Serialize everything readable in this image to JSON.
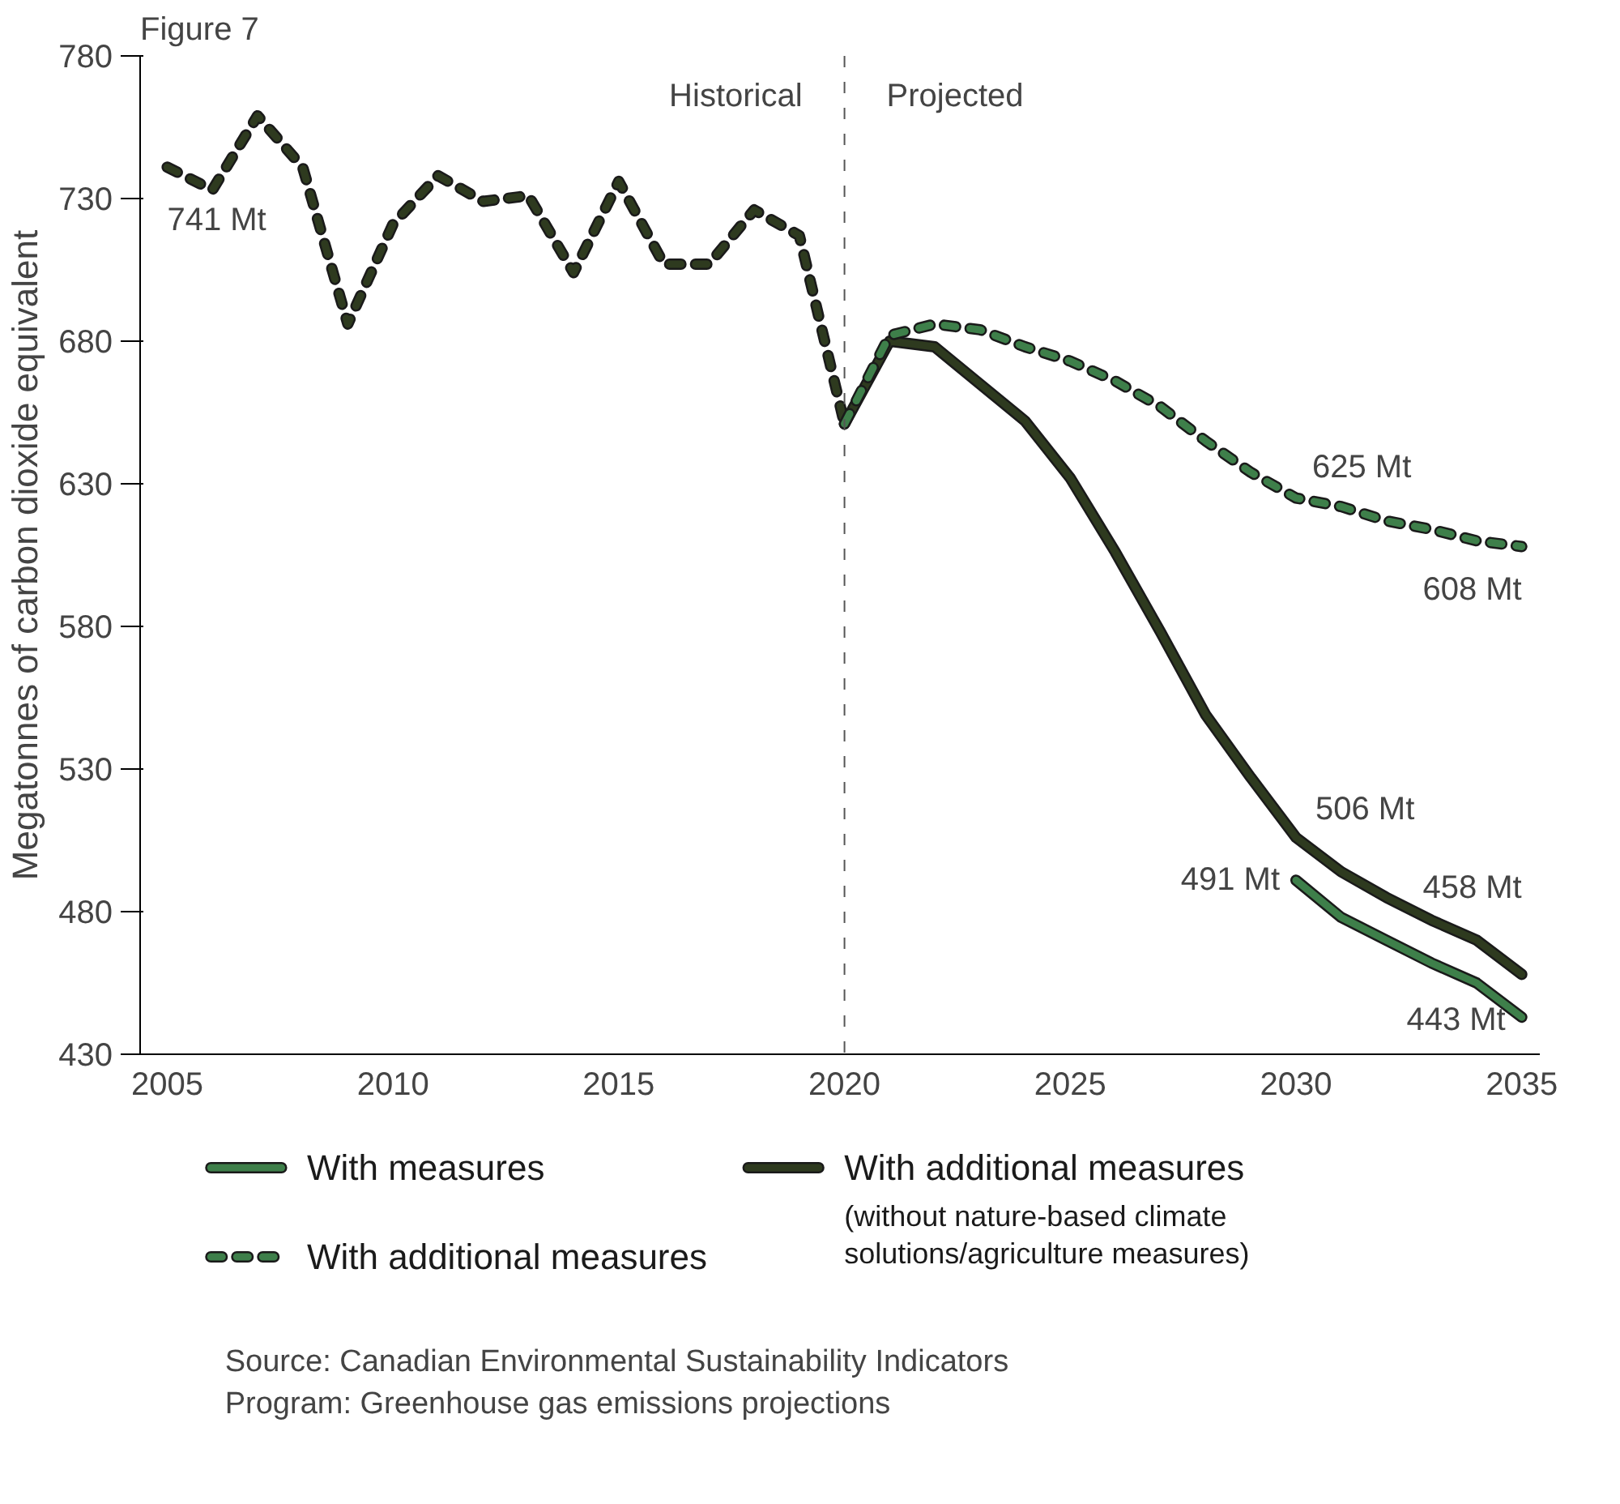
{
  "chart_data": {
    "type": "line",
    "title": "Figure 7",
    "ylabel": "Megatonnes of carbon dioxide equivalent",
    "xlim": [
      2004.4,
      2035.4
    ],
    "xticks": [
      2005,
      2010,
      2015,
      2020,
      2025,
      2030,
      2035
    ],
    "ylim": [
      430,
      780
    ],
    "yticks": [
      430,
      480,
      530,
      580,
      630,
      680,
      730,
      780
    ],
    "grid": false,
    "legend": "bottom",
    "series": [
      {
        "color": "#2e3a1f",
        "line_style": "dashed",
        "x": [
          2005,
          2006,
          2007,
          2008,
          2009,
          2010,
          2011,
          2012,
          2013,
          2014,
          2015,
          2016,
          2017,
          2018,
          2019,
          2020
        ],
        "values": [
          741,
          733,
          759,
          741,
          686,
          721,
          738,
          729,
          731,
          704,
          736,
          707,
          707,
          726,
          717,
          651
        ]
      },
      {
        "name": "With measures",
        "color": "#3e7f4a",
        "line_style": "solid",
        "x": [
          2030,
          2031,
          2032,
          2033,
          2034,
          2035
        ],
        "values": [
          491,
          478,
          470,
          462,
          455,
          443
        ]
      },
      {
        "name": "With additional measures\n(without nature-based climate\nsolutions/agriculture measures)",
        "color": "#2e3a1f",
        "line_style": "solid",
        "x": [
          2020,
          2021,
          2022,
          2023,
          2024,
          2025,
          2026,
          2027,
          2028,
          2029,
          2030,
          2031,
          2032,
          2033,
          2034,
          2035
        ],
        "values": [
          651,
          680,
          678,
          665,
          652,
          632,
          606,
          578,
          549,
          527,
          506,
          494,
          485,
          477,
          470,
          458
        ]
      },
      {
        "name": "With additional measures",
        "color": "#3e7f4a",
        "line_style": "dashed",
        "x": [
          2020,
          2021,
          2022,
          2023,
          2024,
          2025,
          2026,
          2027,
          2028,
          2029,
          2030,
          2031,
          2032,
          2033,
          2034,
          2035
        ],
        "values": [
          651,
          682,
          686,
          684,
          678,
          673,
          666,
          657,
          645,
          634,
          625,
          622,
          617,
          614,
          610,
          608
        ]
      }
    ],
    "ref_lines": [
      {
        "axis": "x",
        "value": 2020,
        "color": "#555555",
        "line_style": "dashed"
      }
    ],
    "annotations": [
      {
        "text": "741 Mt",
        "x": 2005,
        "y": 741
      },
      {
        "text": "625 Mt",
        "x": 2030,
        "y": 625
      },
      {
        "text": "608 Mt",
        "x": 2035,
        "y": 608
      },
      {
        "text": "506 Mt",
        "x": 2030,
        "y": 506
      },
      {
        "text": "491 Mt",
        "x": 2030,
        "y": 491
      },
      {
        "text": "458 Mt",
        "x": 2035,
        "y": 458
      },
      {
        "text": "443 Mt",
        "x": 2035,
        "y": 443
      },
      "Historical",
      "Projected",
      "Source: Canadian Environmental Sustainability Indicators",
      "Program: Greenhouse gas emissions projections"
    ]
  }
}
